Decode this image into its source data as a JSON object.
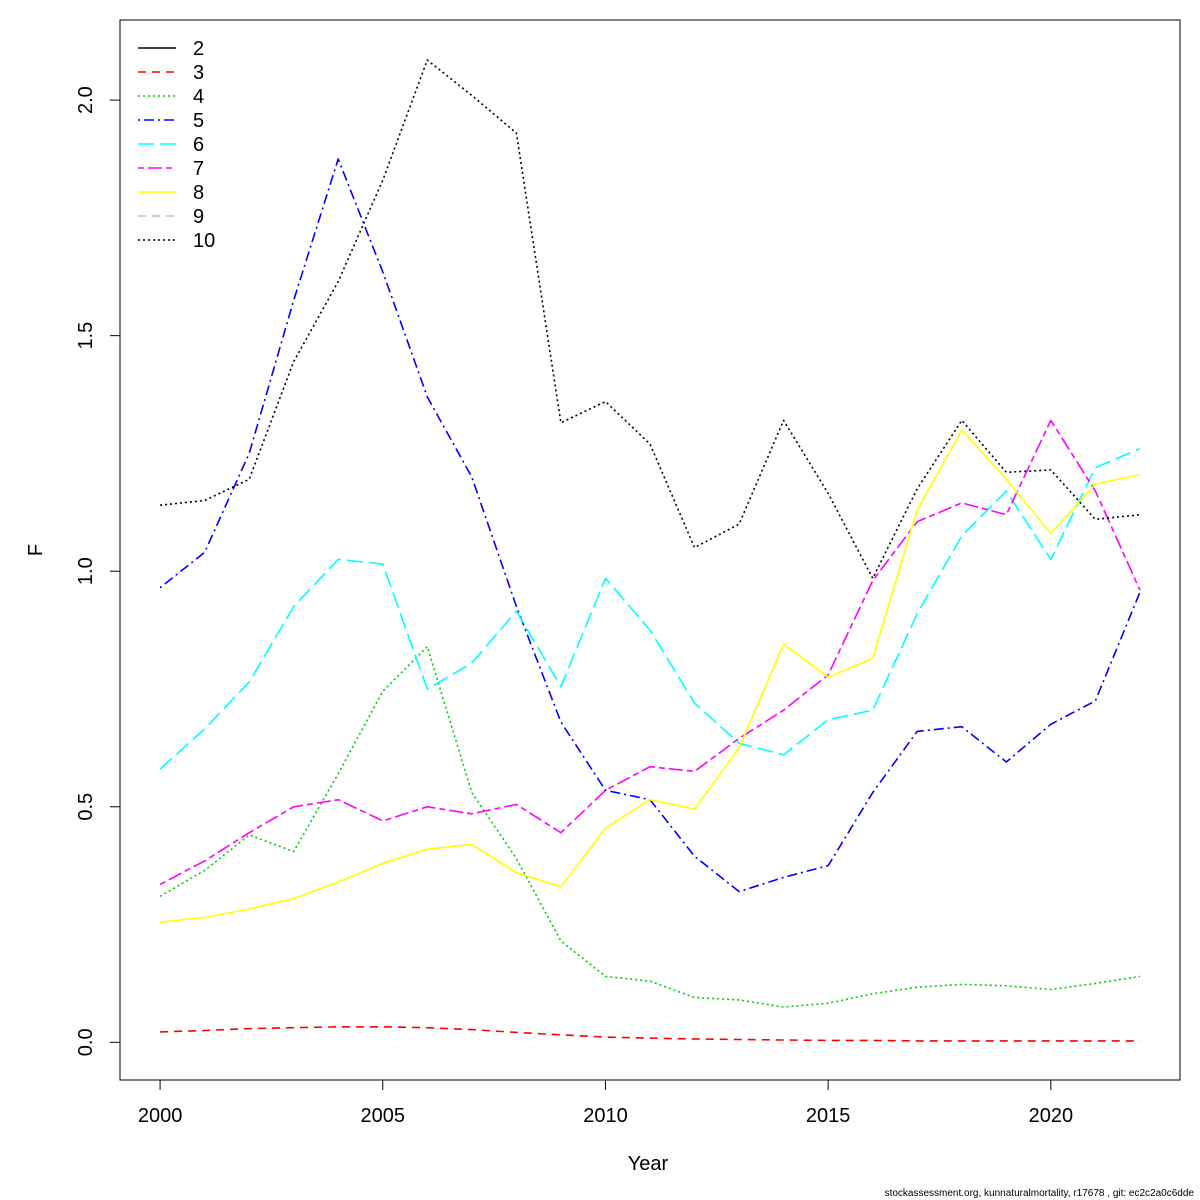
{
  "chart_data": {
    "type": "line",
    "title": "",
    "xlabel": "Year",
    "ylabel": "F",
    "xlim": [
      1999.1,
      2022.9
    ],
    "ylim": [
      -0.08,
      2.17
    ],
    "xticks": [
      2000,
      2005,
      2010,
      2015,
      2020
    ],
    "yticks": [
      0.0,
      0.5,
      1.0,
      1.5,
      2.0
    ],
    "ytick_labels": [
      "0.0",
      "0.5",
      "1.0",
      "1.5",
      "2.0"
    ],
    "grid": false,
    "legend_position": "top-left",
    "x": [
      2000,
      2001,
      2002,
      2003,
      2004,
      2005,
      2006,
      2007,
      2008,
      2009,
      2010,
      2011,
      2012,
      2013,
      2014,
      2015,
      2016,
      2017,
      2018,
      2019,
      2020,
      2021,
      2022
    ],
    "series": [
      {
        "name": "2",
        "color": "#000000",
        "dash": "solid",
        "hidden": true,
        "values": [
          0,
          0,
          0,
          0,
          0,
          0,
          0,
          0,
          0,
          0,
          0,
          0,
          0,
          0,
          0,
          0,
          0,
          0,
          0,
          0,
          0,
          0,
          0
        ]
      },
      {
        "name": "3",
        "color": "#ff0000",
        "dash": "dashed",
        "values": [
          0.022,
          0.025,
          0.029,
          0.031,
          0.033,
          0.033,
          0.031,
          0.027,
          0.021,
          0.016,
          0.011,
          0.009,
          0.007,
          0.006,
          0.005,
          0.004,
          0.004,
          0.003,
          0.003,
          0.003,
          0.003,
          0.003,
          0.003
        ]
      },
      {
        "name": "4",
        "color": "#00cd00",
        "dash": "dotted",
        "values": [
          0.31,
          0.365,
          0.44,
          0.405,
          0.57,
          0.745,
          0.84,
          0.53,
          0.39,
          0.215,
          0.14,
          0.13,
          0.095,
          0.09,
          0.075,
          0.083,
          0.103,
          0.117,
          0.123,
          0.12,
          0.112,
          0.125,
          0.14
        ]
      },
      {
        "name": "5",
        "color": "#0000ff",
        "dash": "dotdash",
        "values": [
          0.965,
          1.04,
          1.25,
          1.575,
          1.875,
          1.635,
          1.37,
          1.2,
          0.925,
          0.68,
          0.535,
          0.515,
          0.395,
          0.32,
          0.35,
          0.375,
          0.53,
          0.66,
          0.67,
          0.595,
          0.675,
          0.725,
          0.955
        ]
      },
      {
        "name": "6",
        "color": "#00ffff",
        "dash": "longdash",
        "values": [
          0.58,
          0.665,
          0.765,
          0.925,
          1.025,
          1.015,
          0.75,
          0.805,
          0.915,
          0.755,
          0.985,
          0.875,
          0.72,
          0.635,
          0.61,
          0.685,
          0.705,
          0.91,
          1.075,
          1.17,
          1.025,
          1.22,
          1.26
        ]
      },
      {
        "name": "7",
        "color": "#ff00ff",
        "dash": "twodash",
        "values": [
          0.335,
          0.385,
          0.445,
          0.5,
          0.515,
          0.47,
          0.5,
          0.485,
          0.505,
          0.445,
          0.535,
          0.585,
          0.575,
          0.645,
          0.705,
          0.78,
          0.98,
          1.105,
          1.145,
          1.12,
          1.32,
          1.17,
          0.96
        ]
      },
      {
        "name": "8",
        "color": "#ffff00",
        "dash": "solid",
        "values": [
          0.255,
          0.265,
          0.283,
          0.305,
          0.34,
          0.38,
          0.41,
          0.42,
          0.36,
          0.33,
          0.455,
          0.515,
          0.495,
          0.625,
          0.845,
          0.775,
          0.815,
          1.13,
          1.3,
          1.195,
          1.08,
          1.185,
          1.205
        ]
      },
      {
        "name": "9",
        "color": "#bebebe",
        "dash": "dashed",
        "hidden": true,
        "values": [
          0,
          0,
          0,
          0,
          0,
          0,
          0,
          0,
          0,
          0,
          0,
          0,
          0,
          0,
          0,
          0,
          0,
          0,
          0,
          0,
          0,
          0,
          0
        ]
      },
      {
        "name": "10",
        "color": "#000000",
        "dash": "dotted",
        "values": [
          1.14,
          1.15,
          1.195,
          1.445,
          1.615,
          1.83,
          2.085,
          2.01,
          1.93,
          1.315,
          1.36,
          1.27,
          1.05,
          1.1,
          1.32,
          1.165,
          0.985,
          1.175,
          1.32,
          1.21,
          1.215,
          1.11,
          1.12
        ]
      }
    ]
  },
  "footer": "stockassessment.org, kunnaturalmortality, r17678 , git: ec2c2a0c6dde"
}
